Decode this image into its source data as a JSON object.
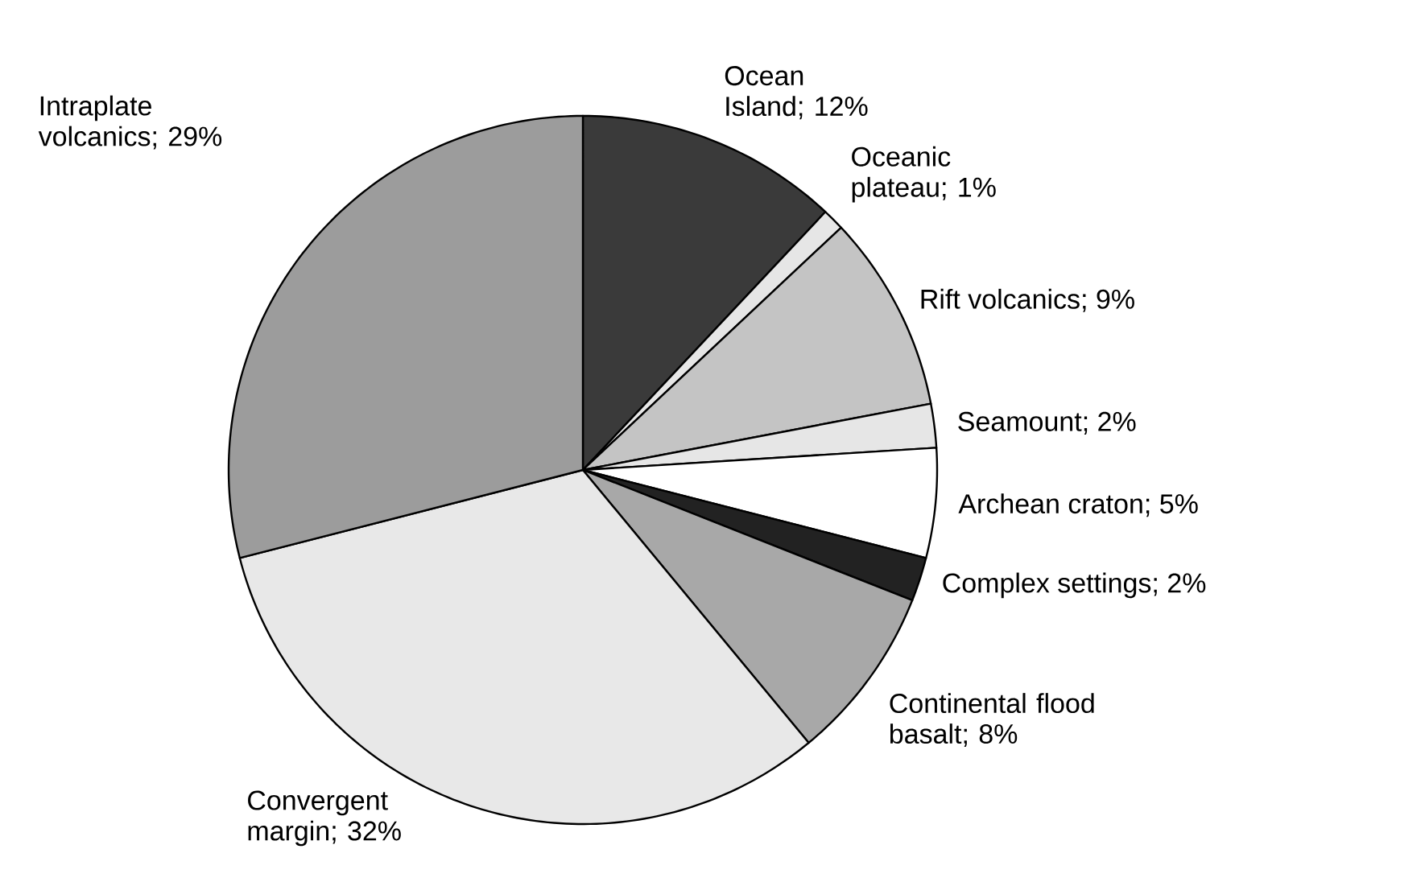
{
  "chart_data": {
    "type": "pie",
    "categories": [
      "Ocean Island; 12%",
      "Oceanic plateau; 1%",
      "Rift volcanics; 9%",
      "Seamount; 2%",
      "Archean craton; 5%",
      "Complex settings; 2%",
      "Continental flood basalt; 8%",
      "Convergent margin; 32%",
      "Intraplate volcanics; 29%"
    ],
    "values": [
      12,
      1,
      9,
      2,
      5,
      2,
      8,
      32,
      29
    ],
    "colors": [
      "#3a3a3a",
      "#e6e6e6",
      "#c4c4c4",
      "#e6e6e6",
      "#ffffff",
      "#222222",
      "#a8a8a8",
      "#e8e8e8",
      "#9c9c9c"
    ]
  }
}
